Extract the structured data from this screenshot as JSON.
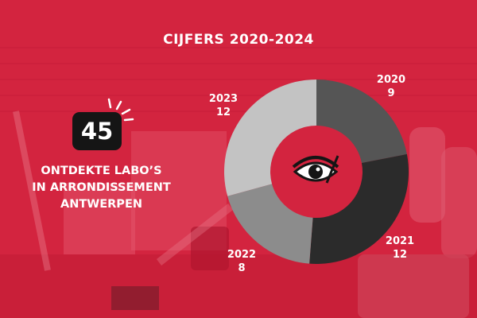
{
  "title": "CIJFERS 2020-2024",
  "stat": {
    "number": "45",
    "caption_lines": [
      "ONTDEKTE LABO’S",
      "IN ARRONDISSEMENT",
      "ANTWERPEN"
    ]
  },
  "colors": {
    "background": "#d3243f",
    "badge": "#151515",
    "text": "#ffffff"
  },
  "icons": [
    "eye-icon"
  ],
  "chart_data": {
    "type": "pie",
    "donut": true,
    "categories": [
      "2020",
      "2021",
      "2022",
      "2023"
    ],
    "values": [
      9,
      12,
      8,
      12
    ],
    "colors": [
      "#555555",
      "#2b2b2b",
      "#8c8c8c",
      "#c3c3c3"
    ]
  }
}
